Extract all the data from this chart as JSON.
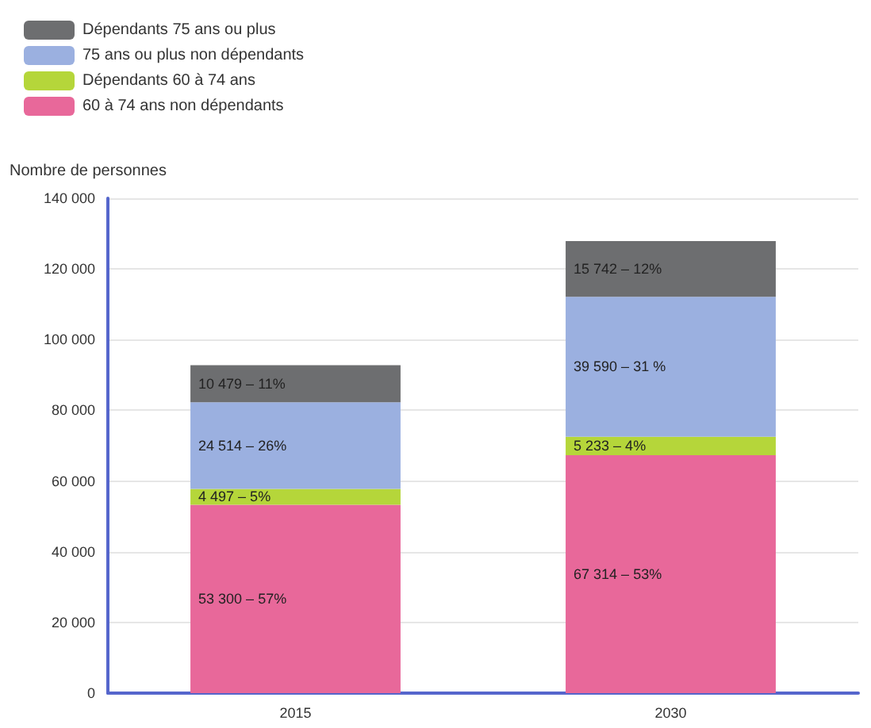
{
  "chart_data": {
    "type": "bar",
    "stacked": true,
    "ylabel": "Nombre de personnes",
    "categories": [
      "2015",
      "2030"
    ],
    "series": [
      {
        "name": "60 à 74 ans non dépendants",
        "color": "#e8689a",
        "values": [
          53300,
          67314
        ],
        "value_labels": [
          "53 300 – 57%",
          "67 314 – 53%"
        ]
      },
      {
        "name": "Dépendants 60 à 74 ans",
        "color": "#b5d63a",
        "values": [
          4497,
          5233
        ],
        "value_labels": [
          "4 497 – 5%",
          "5 233 – 4%"
        ]
      },
      {
        "name": "75 ans ou plus non dépendants",
        "color": "#9bb0e0",
        "values": [
          24514,
          39590
        ],
        "value_labels": [
          "24 514 – 26%",
          "39 590 – 31 %"
        ]
      },
      {
        "name": "Dépendants 75 ans ou plus",
        "color": "#6d6e70",
        "values": [
          10479,
          15742
        ],
        "value_labels": [
          "10 479 – 11%",
          "15 742 – 12%"
        ]
      }
    ],
    "ylim": [
      0,
      140000
    ],
    "yticks": [
      0,
      20000,
      40000,
      60000,
      80000,
      100000,
      120000,
      140000
    ],
    "grid": "y",
    "legend": "top left"
  }
}
